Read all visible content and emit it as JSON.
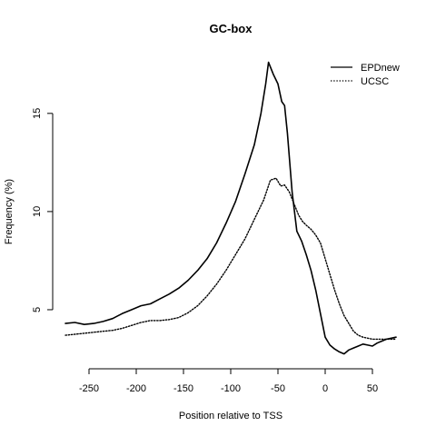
{
  "chart_data": {
    "type": "line",
    "title": "GC-box",
    "xlabel": "Position relative to TSS",
    "ylabel": "Frequency (%)",
    "xlim": [
      -275,
      75
    ],
    "ylim": [
      2.5,
      18
    ],
    "x_ticks": [
      -250,
      -200,
      -150,
      -100,
      -50,
      0,
      50
    ],
    "x_tick_labels": [
      "-250",
      "-200",
      "-150",
      "-100",
      "-50",
      "0",
      "50"
    ],
    "y_ticks": [
      5,
      10,
      15
    ],
    "y_tick_labels": [
      "5",
      "10",
      "15"
    ],
    "grid": false,
    "legend_position": "top-right",
    "series": [
      {
        "name": "EPDnew",
        "style": "solid",
        "color": "#000000",
        "points": [
          [
            -275,
            4.3
          ],
          [
            -265,
            4.35
          ],
          [
            -255,
            4.25
          ],
          [
            -245,
            4.3
          ],
          [
            -235,
            4.4
          ],
          [
            -225,
            4.55
          ],
          [
            -215,
            4.8
          ],
          [
            -205,
            5.0
          ],
          [
            -195,
            5.2
          ],
          [
            -185,
            5.3
          ],
          [
            -175,
            5.55
          ],
          [
            -165,
            5.8
          ],
          [
            -155,
            6.1
          ],
          [
            -145,
            6.5
          ],
          [
            -135,
            7.0
          ],
          [
            -125,
            7.6
          ],
          [
            -115,
            8.4
          ],
          [
            -105,
            9.4
          ],
          [
            -95,
            10.5
          ],
          [
            -85,
            11.9
          ],
          [
            -75,
            13.4
          ],
          [
            -68,
            15.0
          ],
          [
            -63,
            16.5
          ],
          [
            -60,
            17.6
          ],
          [
            -55,
            17.0
          ],
          [
            -50,
            16.5
          ],
          [
            -46,
            15.6
          ],
          [
            -43,
            15.4
          ],
          [
            -40,
            14.0
          ],
          [
            -35,
            11.0
          ],
          [
            -30,
            9.0
          ],
          [
            -25,
            8.5
          ],
          [
            -20,
            7.8
          ],
          [
            -15,
            7.0
          ],
          [
            -10,
            6.0
          ],
          [
            -5,
            4.8
          ],
          [
            0,
            3.6
          ],
          [
            5,
            3.2
          ],
          [
            10,
            3.0
          ],
          [
            15,
            2.85
          ],
          [
            20,
            2.75
          ],
          [
            25,
            2.95
          ],
          [
            30,
            3.05
          ],
          [
            35,
            3.15
          ],
          [
            40,
            3.25
          ],
          [
            45,
            3.2
          ],
          [
            50,
            3.15
          ],
          [
            55,
            3.3
          ],
          [
            60,
            3.4
          ],
          [
            65,
            3.5
          ],
          [
            70,
            3.55
          ],
          [
            75,
            3.6
          ]
        ]
      },
      {
        "name": "UCSC",
        "style": "dotted",
        "color": "#000000",
        "points": [
          [
            -275,
            3.7
          ],
          [
            -265,
            3.75
          ],
          [
            -255,
            3.8
          ],
          [
            -245,
            3.85
          ],
          [
            -235,
            3.9
          ],
          [
            -225,
            3.95
          ],
          [
            -215,
            4.05
          ],
          [
            -205,
            4.2
          ],
          [
            -195,
            4.35
          ],
          [
            -185,
            4.45
          ],
          [
            -175,
            4.45
          ],
          [
            -165,
            4.5
          ],
          [
            -155,
            4.6
          ],
          [
            -145,
            4.85
          ],
          [
            -135,
            5.2
          ],
          [
            -125,
            5.7
          ],
          [
            -115,
            6.3
          ],
          [
            -105,
            7.0
          ],
          [
            -95,
            7.8
          ],
          [
            -85,
            8.6
          ],
          [
            -75,
            9.6
          ],
          [
            -65,
            10.6
          ],
          [
            -58,
            11.6
          ],
          [
            -52,
            11.7
          ],
          [
            -47,
            11.3
          ],
          [
            -43,
            11.35
          ],
          [
            -38,
            11.0
          ],
          [
            -33,
            10.4
          ],
          [
            -28,
            9.8
          ],
          [
            -24,
            9.5
          ],
          [
            -20,
            9.3
          ],
          [
            -15,
            9.1
          ],
          [
            -10,
            8.8
          ],
          [
            -5,
            8.4
          ],
          [
            0,
            7.6
          ],
          [
            5,
            6.8
          ],
          [
            10,
            6.0
          ],
          [
            15,
            5.3
          ],
          [
            20,
            4.7
          ],
          [
            25,
            4.3
          ],
          [
            30,
            3.9
          ],
          [
            35,
            3.7
          ],
          [
            40,
            3.6
          ],
          [
            45,
            3.55
          ],
          [
            50,
            3.5
          ],
          [
            55,
            3.5
          ],
          [
            60,
            3.5
          ],
          [
            65,
            3.5
          ],
          [
            70,
            3.5
          ],
          [
            75,
            3.5
          ]
        ]
      }
    ]
  }
}
